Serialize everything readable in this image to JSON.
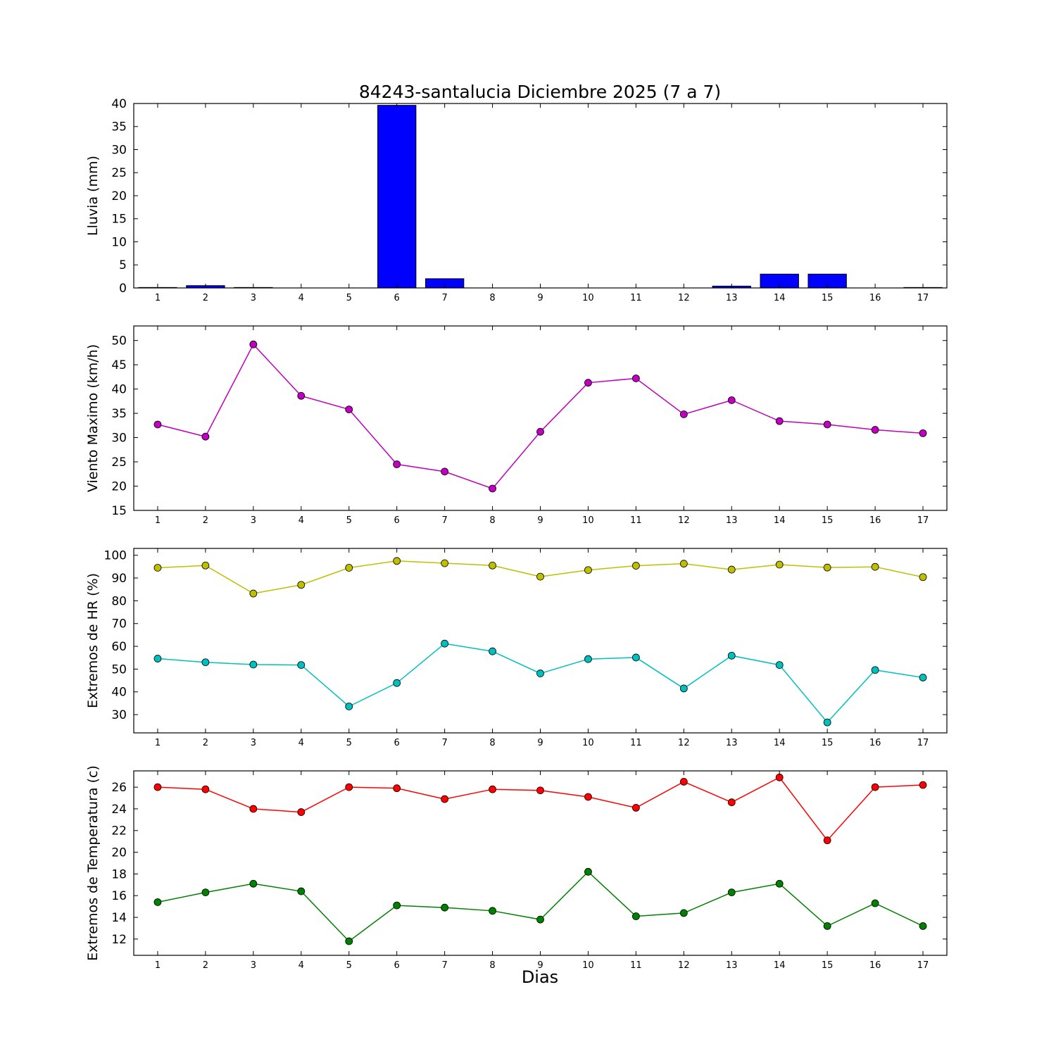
{
  "figure": {
    "title": "84243-santalucia Diciembre 2025  (7 a 7)",
    "xlabel": "Dias",
    "background_color": "#ffffff",
    "frame_color": "#000000"
  },
  "chart_data": [
    {
      "type": "bar",
      "ylabel": "Lluvia (mm)",
      "categories": [
        1,
        2,
        3,
        4,
        5,
        6,
        7,
        8,
        9,
        10,
        11,
        12,
        13,
        14,
        15,
        16,
        17
      ],
      "values": [
        0.1,
        0.5,
        0.1,
        0,
        0,
        39.6,
        2.0,
        0,
        0,
        0,
        0,
        0,
        0.4,
        3.0,
        3.0,
        0,
        0.1
      ],
      "bar_color": "#0000ff",
      "bar_edge_color": "#000000",
      "ylim": [
        0,
        40
      ],
      "yticks": [
        0,
        5,
        10,
        15,
        20,
        25,
        30,
        35,
        40
      ],
      "xlim": [
        0.5,
        17.5
      ],
      "grid": false,
      "legend": "none"
    },
    {
      "type": "line",
      "ylabel": "Viento Maximo (km/h)",
      "x": [
        1,
        2,
        3,
        4,
        5,
        6,
        7,
        8,
        9,
        10,
        11,
        12,
        13,
        14,
        15,
        16,
        17
      ],
      "series": [
        {
          "name": "viento-maximo",
          "color": "#bf00bf",
          "marker": "circle",
          "values": [
            32.7,
            30.2,
            49.2,
            38.6,
            35.8,
            24.5,
            23.0,
            19.5,
            31.2,
            41.3,
            42.2,
            34.8,
            37.7,
            33.4,
            32.7,
            31.6,
            30.9
          ]
        }
      ],
      "ylim": [
        15,
        53
      ],
      "yticks": [
        15,
        20,
        25,
        30,
        35,
        40,
        45,
        50
      ],
      "xlim": [
        0.5,
        17.5
      ],
      "grid": false,
      "legend": "none"
    },
    {
      "type": "line",
      "ylabel": "Extremos de HR (%)",
      "x": [
        1,
        2,
        3,
        4,
        5,
        6,
        7,
        8,
        9,
        10,
        11,
        12,
        13,
        14,
        15,
        16,
        17
      ],
      "series": [
        {
          "name": "hr-maxima",
          "color": "#bfbf00",
          "marker": "circle",
          "values": [
            94.5,
            95.5,
            83.2,
            87.0,
            94.5,
            97.5,
            96.5,
            95.5,
            90.6,
            93.5,
            95.4,
            96.3,
            93.7,
            95.9,
            94.6,
            94.9,
            90.4
          ]
        },
        {
          "name": "hr-minima",
          "color": "#00bfbf",
          "marker": "circle",
          "values": [
            54.6,
            53.0,
            52.0,
            51.8,
            33.6,
            43.9,
            61.2,
            57.8,
            48.1,
            54.4,
            55.1,
            41.5,
            55.9,
            51.8,
            26.6,
            49.6,
            46.3
          ]
        }
      ],
      "ylim": [
        22,
        103
      ],
      "yticks": [
        30,
        40,
        50,
        60,
        70,
        80,
        90,
        100
      ],
      "xlim": [
        0.5,
        17.5
      ],
      "grid": false,
      "legend": "none"
    },
    {
      "type": "line",
      "ylabel": "Extremos de Temperatura (c)",
      "x": [
        1,
        2,
        3,
        4,
        5,
        6,
        7,
        8,
        9,
        10,
        11,
        12,
        13,
        14,
        15,
        16,
        17
      ],
      "series": [
        {
          "name": "temperatura-maxima",
          "color": "#ff0000",
          "marker": "circle",
          "values": [
            26.0,
            25.8,
            24.0,
            23.7,
            26.0,
            25.9,
            24.9,
            25.8,
            25.7,
            25.1,
            24.1,
            26.5,
            24.6,
            26.9,
            21.1,
            26.0,
            26.2
          ]
        },
        {
          "name": "temperatura-minima",
          "color": "#008000",
          "marker": "circle",
          "values": [
            15.4,
            16.3,
            17.1,
            16.4,
            11.8,
            15.1,
            14.9,
            14.6,
            13.8,
            18.2,
            14.1,
            14.4,
            16.3,
            17.1,
            13.2,
            15.3,
            13.2
          ]
        }
      ],
      "ylim": [
        10.5,
        27.5
      ],
      "yticks": [
        12,
        14,
        16,
        18,
        20,
        22,
        24,
        26
      ],
      "xlim": [
        0.5,
        17.5
      ],
      "grid": false,
      "legend": "none"
    }
  ]
}
